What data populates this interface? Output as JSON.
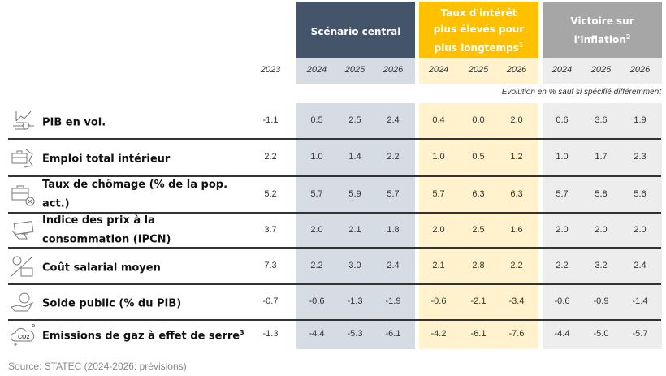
{
  "colors": {
    "central": "#44546a",
    "central_light": "#d6dce4",
    "high_rates": "#ffc000",
    "high_rates_light": "#fff2cc",
    "victory": "#a6a6a6",
    "victory_light": "#ededed"
  },
  "header": {
    "scenarios": [
      {
        "title": "Scénario central",
        "sup": ""
      },
      {
        "title": "Taux d'intérêt plus élevés pour plus longtemps",
        "sup": "1"
      },
      {
        "title": "Victoire sur l'inflation",
        "sup": "2"
      }
    ],
    "base_year": "2023",
    "years": [
      "2024",
      "2025",
      "2026"
    ],
    "subtitle": "Evolution en % sauf si spécifié différemment"
  },
  "rows": [
    {
      "label": "PIB en vol.",
      "sup": "",
      "icon": "growth-chart-coins-icon",
      "values": [
        "-1.1",
        "0.5",
        "2.5",
        "2.4",
        "0.4",
        "0.0",
        "2.0",
        "0.6",
        "3.6",
        "1.9"
      ]
    },
    {
      "label": "Emploi total intérieur",
      "sup": "",
      "icon": "briefcase-map-icon",
      "values": [
        "2.2",
        "1.0",
        "1.4",
        "2.2",
        "1.0",
        "0.5",
        "1.2",
        "1.0",
        "1.7",
        "2.3"
      ]
    },
    {
      "label": "Taux de chômage (% de la pop. act.)",
      "sup": "",
      "icon": "briefcase-cross-icon",
      "values": [
        "5.2",
        "5.7",
        "5.9",
        "5.7",
        "5.7",
        "6.3",
        "6.3",
        "5.7",
        "5.8",
        "5.6"
      ]
    },
    {
      "label": "Indice des prix à la consommation (IPCN)",
      "sup": "",
      "icon": "hand-card-icon",
      "values": [
        "3.7",
        "2.0",
        "2.1",
        "1.8",
        "2.0",
        "2.5",
        "1.6",
        "2.0",
        "2.0",
        "2.0"
      ]
    },
    {
      "label": "Coût salarial moyen",
      "sup": "",
      "icon": "percent-briefcase-icon",
      "values": [
        "7.3",
        "2.2",
        "3.0",
        "2.4",
        "2.1",
        "2.8",
        "2.2",
        "2.2",
        "3.2",
        "2.4"
      ]
    },
    {
      "label": "Solde public (% du PIB)",
      "sup": "",
      "icon": "hand-euro-icon",
      "values": [
        "-0.7",
        "-0.6",
        "-1.3",
        "-1.9",
        "-0.6",
        "-2.1",
        "-3.4",
        "-0.6",
        "-0.9",
        "-1.4"
      ]
    },
    {
      "label": "Emissions de gaz à effet de serre",
      "sup": "3",
      "icon": "co2-cloud-icon",
      "values": [
        "-1.3",
        "-4.4",
        "-5.3",
        "-6.1",
        "-4.2",
        "-6.1",
        "-7.6",
        "-4.4",
        "-5.0",
        "-5.7"
      ]
    }
  ],
  "source": "Source: STATEC (2024-2026: prévisions)"
}
